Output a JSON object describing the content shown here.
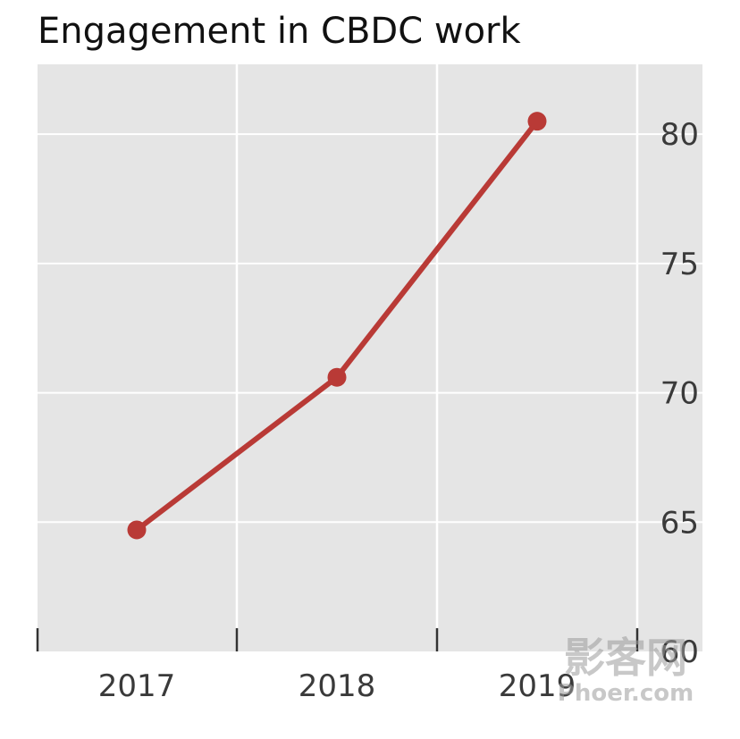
{
  "chart_data": {
    "type": "line",
    "title": "Engagement in CBDC work",
    "xlabel": "",
    "ylabel": "",
    "categories": [
      "2017",
      "2018",
      "2019"
    ],
    "series": [
      {
        "values": [
          64.7,
          70.6,
          80.5
        ],
        "color": "#b93a36"
      }
    ],
    "ylim": [
      60,
      82.7
    ],
    "yticks": [
      60,
      65,
      70,
      75,
      80
    ],
    "y_axis_position": "right",
    "grid": true,
    "background": "#e5e5e5",
    "gridline_color": "#ffffff"
  },
  "watermark": {
    "line1": "影客网",
    "line2": "Phoer.com"
  }
}
